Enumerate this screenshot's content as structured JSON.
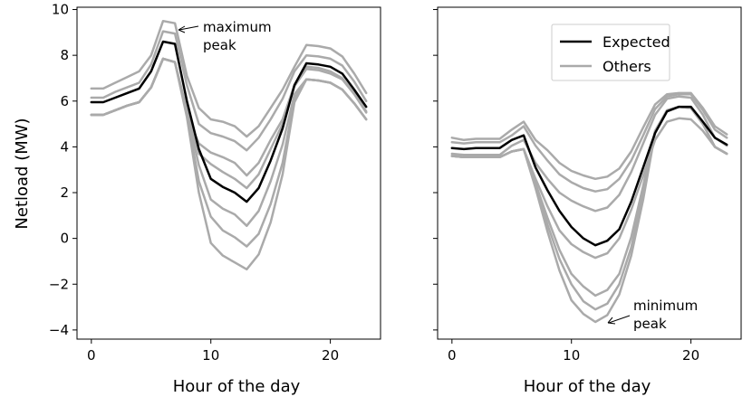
{
  "chart_data": [
    {
      "type": "line",
      "title": "",
      "xlabel": "Hour of the day",
      "ylabel": "Netload (MW)",
      "xlim": [
        -1.2,
        24.2
      ],
      "ylim": [
        -4.4,
        10.1
      ],
      "xticks": [
        0,
        10,
        20
      ],
      "xtick_labels": [
        "0",
        "10",
        "20"
      ],
      "yticks": [
        -4,
        -2,
        0,
        2,
        4,
        6,
        8,
        10
      ],
      "ytick_labels": [
        "−4",
        "−2",
        "0",
        "2",
        "4",
        "6",
        "8",
        "10"
      ],
      "x": [
        0,
        1,
        2,
        3,
        4,
        5,
        6,
        7,
        8,
        9,
        10,
        11,
        12,
        13,
        14,
        15,
        16,
        17,
        18,
        19,
        20,
        21,
        22,
        23
      ],
      "series": [
        {
          "name": "Expected",
          "color": "#000000",
          "values": [
            5.95,
            5.95,
            6.15,
            6.35,
            6.55,
            7.3,
            8.6,
            8.5,
            6.0,
            3.9,
            2.6,
            2.25,
            2.0,
            1.6,
            2.2,
            3.4,
            4.8,
            6.7,
            7.65,
            7.6,
            7.5,
            7.2,
            6.5,
            5.75
          ]
        },
        {
          "name": "Others",
          "color": "#aaaaaa",
          "values": [
            6.55,
            6.55,
            6.8,
            7.05,
            7.3,
            8.0,
            9.5,
            9.4,
            7.1,
            5.7,
            5.2,
            5.1,
            4.9,
            4.45,
            4.9,
            5.7,
            6.5,
            7.5,
            8.45,
            8.4,
            8.3,
            7.95,
            7.2,
            6.35
          ]
        },
        {
          "name": "Others",
          "color": "#aaaaaa",
          "values": [
            6.15,
            6.15,
            6.4,
            6.6,
            6.8,
            7.6,
            9.05,
            8.95,
            6.7,
            5.0,
            4.6,
            4.45,
            4.25,
            3.85,
            4.4,
            5.2,
            6.1,
            7.3,
            8.0,
            7.95,
            7.85,
            7.55,
            6.85,
            6.0
          ]
        },
        {
          "name": "Others",
          "color": "#aaaaaa",
          "values": [
            5.4,
            5.4,
            5.6,
            5.8,
            5.95,
            6.6,
            7.85,
            7.7,
            5.4,
            4.15,
            3.75,
            3.55,
            3.3,
            2.75,
            3.3,
            4.3,
            5.2,
            6.7,
            7.5,
            7.45,
            7.3,
            7.0,
            6.35,
            5.55
          ]
        },
        {
          "name": "Others",
          "color": "#aaaaaa",
          "values": [
            5.4,
            5.4,
            5.6,
            5.8,
            5.95,
            6.6,
            7.85,
            7.7,
            5.6,
            3.7,
            3.25,
            2.9,
            2.6,
            2.2,
            2.8,
            3.9,
            5.0,
            6.65,
            7.4,
            7.35,
            7.2,
            6.95,
            6.3,
            5.5
          ]
        },
        {
          "name": "Others",
          "color": "#aaaaaa",
          "values": [
            5.4,
            5.4,
            5.6,
            5.8,
            5.95,
            6.6,
            7.85,
            7.7,
            5.5,
            3.2,
            1.7,
            1.3,
            1.05,
            0.55,
            1.2,
            2.5,
            4.1,
            6.3,
            6.95,
            6.9,
            6.8,
            6.5,
            5.9,
            5.2
          ]
        },
        {
          "name": "Others",
          "color": "#aaaaaa",
          "values": [
            5.4,
            5.4,
            5.6,
            5.8,
            5.95,
            6.6,
            7.85,
            7.7,
            5.4,
            2.5,
            0.95,
            0.35,
            0.05,
            -0.35,
            0.2,
            1.5,
            3.3,
            6.1,
            6.95,
            6.9,
            6.8,
            6.5,
            5.9,
            5.2
          ]
        },
        {
          "name": "Others",
          "color": "#aaaaaa",
          "values": [
            5.4,
            5.4,
            5.6,
            5.8,
            5.95,
            6.6,
            7.85,
            7.7,
            5.3,
            2.0,
            -0.2,
            -0.75,
            -1.05,
            -1.35,
            -0.7,
            0.7,
            2.8,
            5.95,
            6.95,
            6.9,
            6.8,
            6.5,
            5.9,
            5.2
          ]
        }
      ],
      "annotations": [
        {
          "text_lines": [
            "maximum",
            "peak"
          ],
          "arrow_to": [
            7.3,
            9.45
          ]
        }
      ]
    },
    {
      "type": "line",
      "title": "",
      "xlabel": "Hour of the day",
      "ylabel": "",
      "xlim": [
        -1.2,
        24.2
      ],
      "ylim": [
        -4.4,
        10.1
      ],
      "xticks": [
        0,
        10,
        20
      ],
      "xtick_labels": [
        "0",
        "10",
        "20"
      ],
      "yticks": [
        -4,
        -2,
        0,
        2,
        4,
        6,
        8,
        10
      ],
      "ytick_labels": [],
      "x": [
        0,
        1,
        2,
        3,
        4,
        5,
        6,
        7,
        8,
        9,
        10,
        11,
        12,
        13,
        14,
        15,
        16,
        17,
        18,
        19,
        20,
        21,
        22,
        23
      ],
      "series": [
        {
          "name": "Expected",
          "color": "#000000",
          "values": [
            3.95,
            3.9,
            3.95,
            3.95,
            3.95,
            4.3,
            4.5,
            3.1,
            2.1,
            1.2,
            0.5,
            0.0,
            -0.3,
            -0.1,
            0.4,
            1.6,
            3.1,
            4.6,
            5.55,
            5.75,
            5.75,
            5.1,
            4.4,
            4.1
          ]
        },
        {
          "name": "Others",
          "color": "#aaaaaa",
          "values": [
            4.4,
            4.3,
            4.35,
            4.35,
            4.35,
            4.75,
            5.1,
            4.3,
            3.85,
            3.3,
            2.95,
            2.75,
            2.6,
            2.7,
            3.05,
            3.8,
            4.85,
            5.85,
            6.3,
            6.35,
            6.35,
            5.7,
            4.9,
            4.55
          ]
        },
        {
          "name": "Others",
          "color": "#aaaaaa",
          "values": [
            4.2,
            4.15,
            4.2,
            4.2,
            4.2,
            4.5,
            4.9,
            4.05,
            3.4,
            2.8,
            2.45,
            2.2,
            2.05,
            2.15,
            2.6,
            3.4,
            4.5,
            5.65,
            6.2,
            6.3,
            6.3,
            5.6,
            4.75,
            4.4
          ]
        },
        {
          "name": "Others",
          "color": "#aaaaaa",
          "values": [
            3.7,
            3.65,
            3.65,
            3.65,
            3.65,
            4.05,
            4.3,
            3.3,
            2.6,
            2.0,
            1.65,
            1.4,
            1.2,
            1.35,
            1.9,
            2.9,
            4.15,
            5.4,
            6.1,
            6.2,
            6.15,
            5.4,
            4.4,
            4.05
          ]
        },
        {
          "name": "Others",
          "color": "#aaaaaa",
          "values": [
            3.6,
            3.55,
            3.55,
            3.55,
            3.55,
            3.8,
            3.9,
            2.6,
            1.4,
            0.35,
            -0.25,
            -0.6,
            -0.85,
            -0.65,
            0.0,
            1.25,
            2.75,
            4.3,
            5.1,
            5.25,
            5.2,
            4.7,
            4.0,
            3.7
          ]
        },
        {
          "name": "Others",
          "color": "#aaaaaa",
          "values": [
            3.6,
            3.55,
            3.55,
            3.55,
            3.55,
            3.8,
            3.9,
            2.4,
            0.9,
            -0.5,
            -1.55,
            -2.1,
            -2.5,
            -2.25,
            -1.55,
            0.05,
            2.3,
            4.7,
            5.6,
            5.75,
            5.7,
            5.0,
            4.0,
            3.7
          ]
        },
        {
          "name": "Others",
          "color": "#aaaaaa",
          "values": [
            3.6,
            3.55,
            3.55,
            3.55,
            3.55,
            3.8,
            3.9,
            2.3,
            0.6,
            -0.9,
            -2.0,
            -2.75,
            -3.1,
            -2.85,
            -2.0,
            -0.4,
            2.0,
            4.65,
            5.6,
            5.75,
            5.7,
            5.0,
            4.0,
            3.7
          ]
        },
        {
          "name": "Others",
          "color": "#aaaaaa",
          "values": [
            3.6,
            3.55,
            3.55,
            3.55,
            3.55,
            3.8,
            3.9,
            2.2,
            0.3,
            -1.4,
            -2.7,
            -3.3,
            -3.65,
            -3.35,
            -2.45,
            -0.75,
            1.7,
            4.6,
            5.6,
            5.75,
            5.7,
            5.0,
            4.0,
            3.7
          ]
        }
      ],
      "legend": {
        "placement": "top-right",
        "entries": [
          {
            "label": "Expected",
            "color": "#000000"
          },
          {
            "label": "Others",
            "color": "#aaaaaa"
          }
        ]
      },
      "annotations": [
        {
          "text_lines": [
            "minimum",
            "peak"
          ],
          "arrow_to": [
            12.8,
            -3.45
          ]
        }
      ]
    }
  ]
}
